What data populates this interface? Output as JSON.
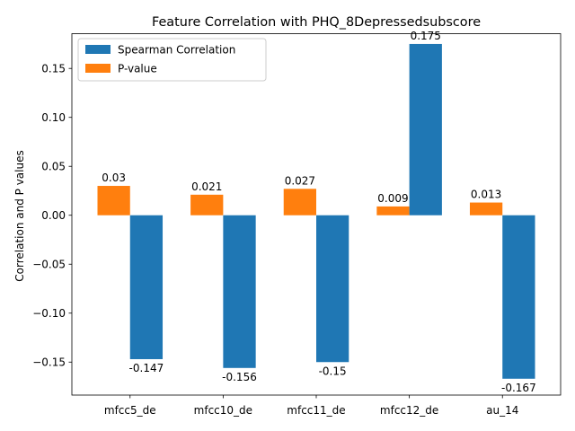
{
  "chart_data": {
    "type": "bar",
    "title": "Feature Correlation with PHQ_8Depressedsubscore",
    "xlabel": "",
    "ylabel": "Correlation and P values",
    "categories": [
      "mfcc5_de",
      "mfcc10_de",
      "mfcc11_de",
      "mfcc12_de",
      "au_14"
    ],
    "series": [
      {
        "name": "Spearman Correlation",
        "color": "#1f77b4",
        "values": [
          -0.147,
          -0.156,
          -0.15,
          0.175,
          -0.167
        ],
        "labels": [
          "-0.147",
          "-0.156",
          "-0.15",
          "0.175",
          "-0.167"
        ]
      },
      {
        "name": "P-value",
        "color": "#ff7f0e",
        "values": [
          0.03,
          0.021,
          0.027,
          0.009,
          0.013
        ],
        "labels": [
          "0.03",
          "0.021",
          "0.027",
          "0.009",
          "0.013"
        ]
      }
    ],
    "ylim": [
      -0.1837,
      0.1855
    ],
    "yticks": [
      -0.15,
      -0.1,
      -0.05,
      0.0,
      0.05,
      0.1,
      0.15
    ],
    "ytick_labels": [
      "−0.15",
      "−0.10",
      "−0.05",
      "0.00",
      "0.05",
      "0.10",
      "0.15"
    ],
    "grid": false,
    "legend_position": "top-left"
  }
}
